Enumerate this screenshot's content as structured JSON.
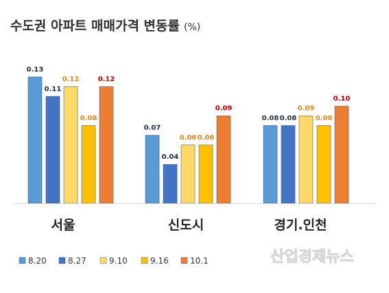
{
  "chart_data": {
    "type": "bar",
    "title": "수도권 아파트 매매가격 변동률",
    "title_unit": "(%)",
    "categories": [
      "서울",
      "신도시",
      "경기.인천"
    ],
    "series": [
      {
        "name": "8.20",
        "values": [
          0.13,
          0.07,
          0.08
        ],
        "color": "#5b9bd5",
        "label_color": "#1f2d3d"
      },
      {
        "name": "8.27",
        "values": [
          0.11,
          0.04,
          0.08
        ],
        "color": "#4472c4",
        "label_color": "#1f2d3d"
      },
      {
        "name": "9.10",
        "values": [
          0.12,
          0.06,
          0.09
        ],
        "color": "#ffd966",
        "label_color": "#e08a1e"
      },
      {
        "name": "9.16",
        "values": [
          0.08,
          0.06,
          0.08
        ],
        "color": "#ffc000",
        "label_color": "#e08a1e"
      },
      {
        "name": "10.1",
        "values": [
          0.12,
          0.09,
          0.1
        ],
        "color": "#ed7d31",
        "label_color": "#c00000"
      }
    ],
    "ylim": [
      0,
      0.14
    ],
    "grid": false,
    "legend_position": "bottom-left"
  },
  "watermark": "산업경제뉴스"
}
